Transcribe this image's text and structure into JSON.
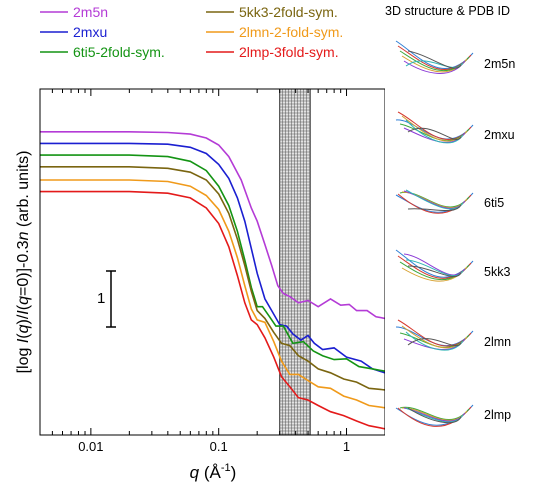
{
  "chart_data": {
    "type": "line",
    "xlabel": "q (Å⁻¹)",
    "ylabel": "[log I(q)/I(q=0)]-0.3n (arb. units)",
    "xscale": "log",
    "xlim": [
      0.004,
      2.0
    ],
    "ylim": [
      -3.9,
      0.55
    ],
    "x_ticks": [
      "0.01",
      "0.1",
      "1"
    ],
    "grid": false,
    "legend": "top-left, two columns",
    "scale_bar_label": "1",
    "shaded_band": {
      "xmin": 0.3,
      "xmax": 0.52
    },
    "series": [
      {
        "name": "2m5n",
        "color": "#b43bd6",
        "points": [
          [
            0.004,
            0.0
          ],
          [
            0.02,
            0.0
          ],
          [
            0.04,
            -0.01
          ],
          [
            0.06,
            -0.03
          ],
          [
            0.08,
            -0.08
          ],
          [
            0.1,
            -0.17
          ],
          [
            0.12,
            -0.32
          ],
          [
            0.15,
            -0.62
          ],
          [
            0.18,
            -0.98
          ],
          [
            0.2,
            -1.15
          ],
          [
            0.23,
            -1.45
          ],
          [
            0.26,
            -1.72
          ],
          [
            0.29,
            -1.98
          ],
          [
            0.32,
            -2.08
          ],
          [
            0.36,
            -2.12
          ],
          [
            0.42,
            -2.2
          ],
          [
            0.5,
            -2.17
          ],
          [
            0.6,
            -2.25
          ],
          [
            0.75,
            -2.15
          ],
          [
            0.9,
            -2.23
          ],
          [
            1.05,
            -2.22
          ],
          [
            1.2,
            -2.3
          ],
          [
            1.45,
            -2.3
          ],
          [
            1.7,
            -2.38
          ],
          [
            2.0,
            -2.4
          ]
        ]
      },
      {
        "name": "2mxu",
        "color": "#1b1fd1",
        "points": [
          [
            0.004,
            -0.15
          ],
          [
            0.02,
            -0.15
          ],
          [
            0.04,
            -0.16
          ],
          [
            0.06,
            -0.2
          ],
          [
            0.08,
            -0.28
          ],
          [
            0.1,
            -0.42
          ],
          [
            0.12,
            -0.6
          ],
          [
            0.14,
            -0.85
          ],
          [
            0.16,
            -1.15
          ],
          [
            0.18,
            -1.5
          ],
          [
            0.2,
            -1.82
          ],
          [
            0.23,
            -2.15
          ],
          [
            0.26,
            -2.3
          ],
          [
            0.3,
            -2.48
          ],
          [
            0.34,
            -2.5
          ],
          [
            0.38,
            -2.6
          ],
          [
            0.44,
            -2.68
          ],
          [
            0.5,
            -2.62
          ],
          [
            0.56,
            -2.72
          ],
          [
            0.65,
            -2.8
          ],
          [
            0.8,
            -2.78
          ],
          [
            1.0,
            -2.9
          ],
          [
            1.3,
            -2.95
          ],
          [
            1.6,
            -3.05
          ],
          [
            2.0,
            -3.1
          ]
        ]
      },
      {
        "name": "6ti5-2fold-sym.",
        "color": "#149414",
        "points": [
          [
            0.004,
            -0.3
          ],
          [
            0.02,
            -0.3
          ],
          [
            0.04,
            -0.32
          ],
          [
            0.06,
            -0.38
          ],
          [
            0.08,
            -0.5
          ],
          [
            0.1,
            -0.7
          ],
          [
            0.12,
            -0.95
          ],
          [
            0.14,
            -1.28
          ],
          [
            0.16,
            -1.65
          ],
          [
            0.18,
            -2.0
          ],
          [
            0.2,
            -2.25
          ],
          [
            0.22,
            -2.25
          ],
          [
            0.25,
            -2.38
          ],
          [
            0.28,
            -2.5
          ],
          [
            0.32,
            -2.5
          ],
          [
            0.38,
            -2.72
          ],
          [
            0.46,
            -2.7
          ],
          [
            0.55,
            -2.82
          ],
          [
            0.65,
            -2.88
          ],
          [
            0.8,
            -2.93
          ],
          [
            1.0,
            -2.92
          ],
          [
            1.25,
            -3.02
          ],
          [
            1.6,
            -3.05
          ],
          [
            2.0,
            -3.08
          ]
        ]
      },
      {
        "name": "5kk3-2fold-sym.",
        "color": "#7a6510",
        "points": [
          [
            0.004,
            -0.45
          ],
          [
            0.02,
            -0.45
          ],
          [
            0.04,
            -0.47
          ],
          [
            0.06,
            -0.52
          ],
          [
            0.08,
            -0.62
          ],
          [
            0.1,
            -0.8
          ],
          [
            0.12,
            -1.05
          ],
          [
            0.14,
            -1.38
          ],
          [
            0.16,
            -1.72
          ],
          [
            0.18,
            -2.05
          ],
          [
            0.2,
            -2.3
          ],
          [
            0.23,
            -2.4
          ],
          [
            0.27,
            -2.58
          ],
          [
            0.31,
            -2.72
          ],
          [
            0.36,
            -2.75
          ],
          [
            0.42,
            -2.88
          ],
          [
            0.5,
            -2.95
          ],
          [
            0.6,
            -3.05
          ],
          [
            0.75,
            -3.1
          ],
          [
            0.95,
            -3.18
          ],
          [
            1.2,
            -3.22
          ],
          [
            1.5,
            -3.3
          ],
          [
            2.0,
            -3.32
          ]
        ]
      },
      {
        "name": "2lmn-2-fold-sym.",
        "color": "#f09a1a",
        "points": [
          [
            0.004,
            -0.62
          ],
          [
            0.02,
            -0.62
          ],
          [
            0.04,
            -0.64
          ],
          [
            0.06,
            -0.7
          ],
          [
            0.08,
            -0.82
          ],
          [
            0.1,
            -1.0
          ],
          [
            0.12,
            -1.28
          ],
          [
            0.14,
            -1.62
          ],
          [
            0.16,
            -1.98
          ],
          [
            0.18,
            -2.28
          ],
          [
            0.2,
            -2.42
          ],
          [
            0.23,
            -2.45
          ],
          [
            0.27,
            -2.7
          ],
          [
            0.31,
            -2.95
          ],
          [
            0.36,
            -3.12
          ],
          [
            0.42,
            -3.12
          ],
          [
            0.5,
            -3.2
          ],
          [
            0.6,
            -3.28
          ],
          [
            0.75,
            -3.3
          ],
          [
            0.95,
            -3.4
          ],
          [
            1.2,
            -3.45
          ],
          [
            1.5,
            -3.52
          ],
          [
            2.0,
            -3.55
          ]
        ]
      },
      {
        "name": "2lmp-3fold-sym.",
        "color": "#e41a1a",
        "points": [
          [
            0.004,
            -0.77
          ],
          [
            0.02,
            -0.77
          ],
          [
            0.04,
            -0.79
          ],
          [
            0.06,
            -0.85
          ],
          [
            0.08,
            -0.98
          ],
          [
            0.1,
            -1.18
          ],
          [
            0.12,
            -1.48
          ],
          [
            0.14,
            -1.85
          ],
          [
            0.16,
            -2.2
          ],
          [
            0.18,
            -2.42
          ],
          [
            0.2,
            -2.48
          ],
          [
            0.23,
            -2.65
          ],
          [
            0.27,
            -2.9
          ],
          [
            0.31,
            -3.15
          ],
          [
            0.36,
            -3.28
          ],
          [
            0.42,
            -3.42
          ],
          [
            0.5,
            -3.45
          ],
          [
            0.6,
            -3.52
          ],
          [
            0.75,
            -3.6
          ],
          [
            0.95,
            -3.65
          ],
          [
            1.2,
            -3.72
          ],
          [
            1.5,
            -3.78
          ],
          [
            2.0,
            -3.82
          ]
        ]
      }
    ]
  },
  "structures_panel": {
    "title": "3D structure & PDB ID",
    "items": [
      {
        "pdb_id": "2m5n",
        "icon": "fibril-structure-icon"
      },
      {
        "pdb_id": "2mxu",
        "icon": "fibril-structure-icon"
      },
      {
        "pdb_id": "6ti5",
        "icon": "fibril-structure-icon"
      },
      {
        "pdb_id": "5kk3",
        "icon": "fibril-structure-icon"
      },
      {
        "pdb_id": "2lmn",
        "icon": "fibril-structure-icon"
      },
      {
        "pdb_id": "2lmp",
        "icon": "fibril-structure-icon"
      }
    ]
  }
}
